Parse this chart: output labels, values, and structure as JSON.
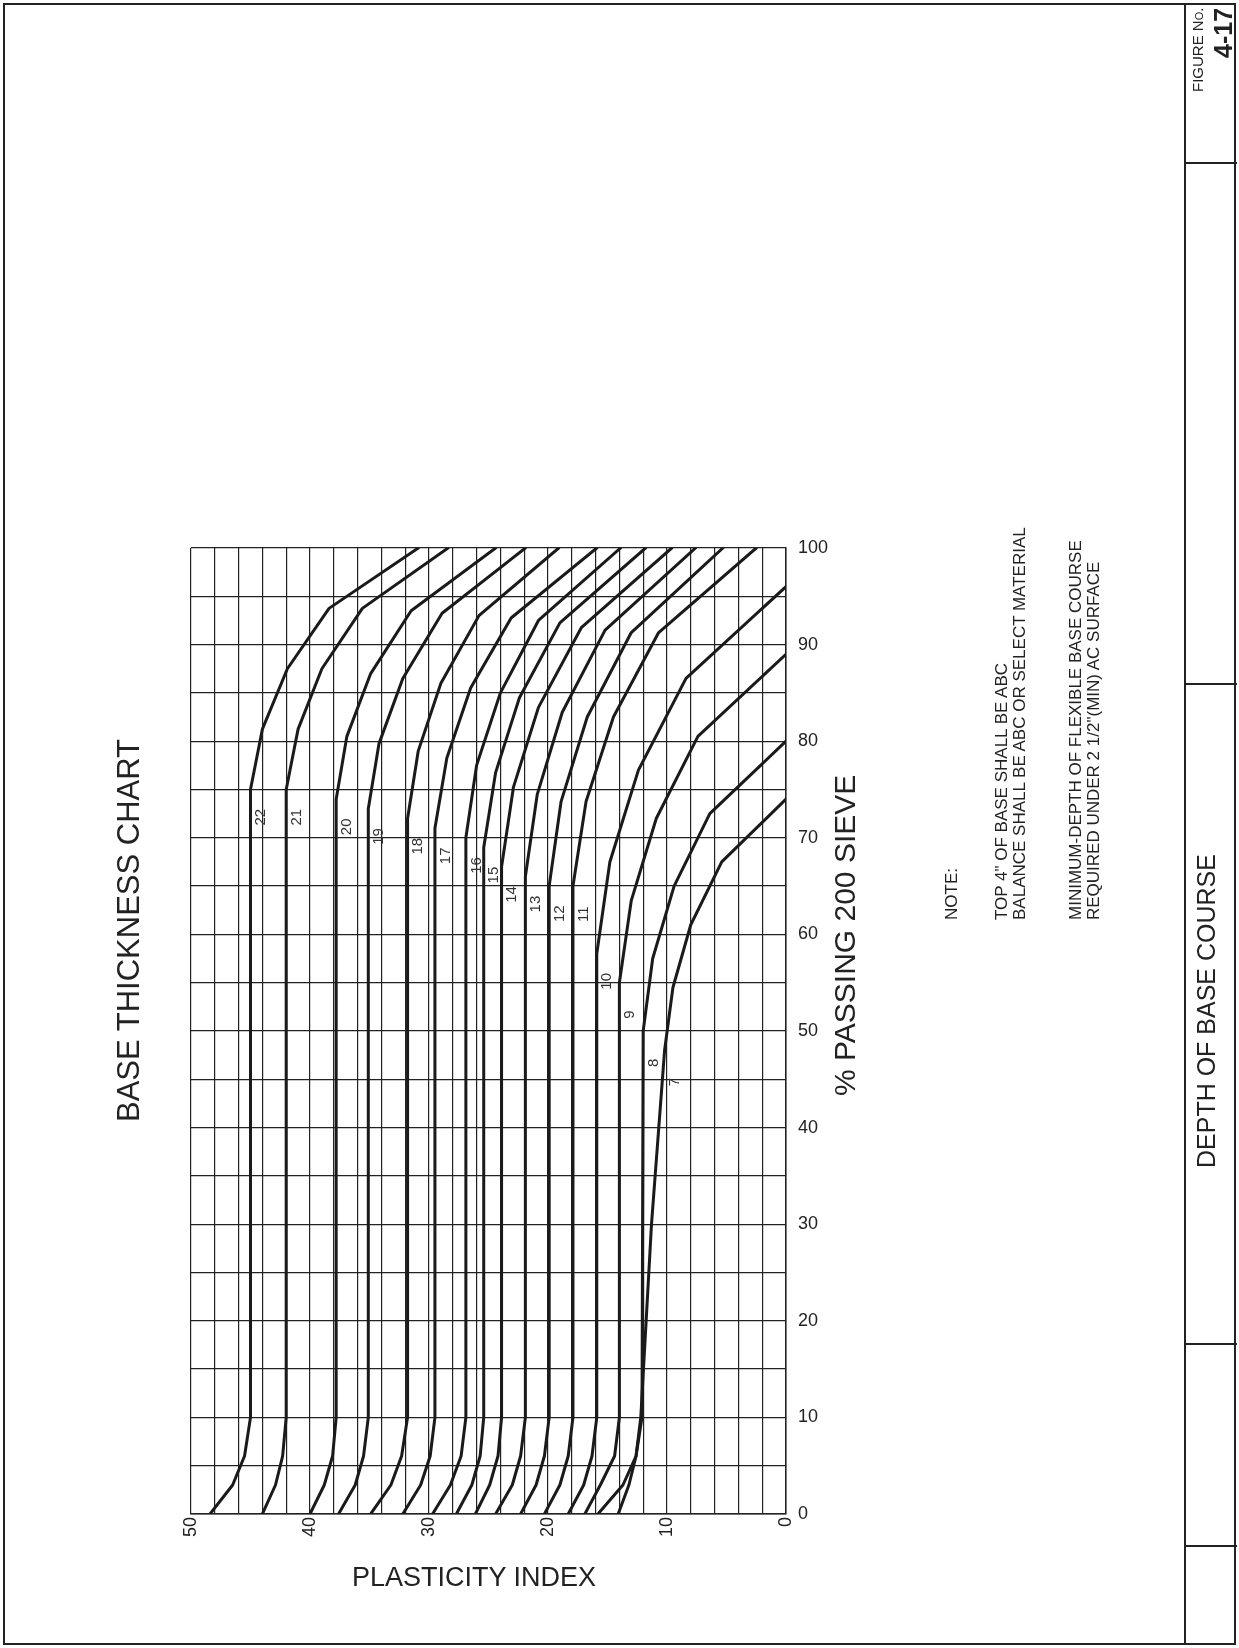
{
  "chart_data": {
    "type": "line",
    "title": "BASE THICKNESS CHART",
    "xlabel": "PLASTICITY INDEX",
    "ylabel": "% PASSING 200 SIEVE",
    "xlim": [
      50,
      0
    ],
    "ylim": [
      0,
      100
    ],
    "xticks": [
      50,
      {
        "value": 48,
        "label": null
      },
      {
        "value": 46,
        "label": null
      },
      {
        "value": 44,
        "label": null
      },
      {
        "value": 42,
        "label": null
      },
      40,
      {
        "value": 38,
        "label": null
      },
      {
        "value": 36,
        "label": null
      },
      {
        "value": 34,
        "label": null
      },
      {
        "value": 32,
        "label": null
      },
      30,
      {
        "value": 28,
        "label": null
      },
      {
        "value": 26,
        "label": null
      },
      {
        "value": 24,
        "label": null
      },
      {
        "value": 22,
        "label": null
      },
      20,
      {
        "value": 18,
        "label": null
      },
      {
        "value": 16,
        "label": null
      },
      {
        "value": 14,
        "label": null
      },
      {
        "value": 12,
        "label": null
      },
      10,
      {
        "value": 8,
        "label": null
      },
      {
        "value": 6,
        "label": null
      },
      {
        "value": 4,
        "label": null
      },
      {
        "value": 2,
        "label": null
      },
      0
    ],
    "yticks": [
      0,
      {
        "value": 5,
        "label": null
      },
      10,
      {
        "value": 15,
        "label": null
      },
      20,
      {
        "value": 25,
        "label": null
      },
      30,
      {
        "value": 35,
        "label": null
      },
      40,
      {
        "value": 45,
        "label": null
      },
      50,
      {
        "value": 55,
        "label": null
      },
      60,
      {
        "value": 65,
        "label": null
      },
      70,
      {
        "value": 75,
        "label": null
      },
      80,
      {
        "value": 85,
        "label": null
      },
      90,
      {
        "value": 95,
        "label": null
      },
      100
    ],
    "grid": true,
    "legend": false,
    "series": [
      {
        "name": "22",
        "color": "#1a1a1a",
        "x": [
          48.4,
          46.5,
          45.5,
          45,
          45,
          44,
          41.9,
          38.4,
          30.9
        ],
        "values": [
          0,
          3,
          6,
          10,
          75,
          81.25,
          87.5,
          93.75,
          100
        ]
      },
      {
        "name": "21",
        "color": "#1a1a1a",
        "x": [
          44,
          42.9,
          42.3,
          42,
          42,
          41,
          39,
          35.6,
          28.4
        ],
        "values": [
          0,
          3,
          6,
          10,
          75,
          81.25,
          87.5,
          93.75,
          100
        ]
      },
      {
        "name": "20",
        "color": "#1a1a1a",
        "x": [
          40,
          38.8,
          38.1,
          37.8,
          37.8,
          36.9,
          34.9,
          31.5,
          24.4
        ],
        "values": [
          0,
          3,
          6,
          10,
          74,
          80.5,
          87,
          93.5,
          100
        ]
      },
      {
        "name": "19",
        "color": "#1a1a1a",
        "x": [
          37.6,
          36.2,
          35.5,
          35.1,
          35.1,
          34.2,
          32.2,
          28.9,
          21.9
        ],
        "values": [
          0,
          3,
          6,
          10,
          73,
          79.75,
          86.5,
          93.25,
          100
        ]
      },
      {
        "name": "18",
        "color": "#1a1a1a",
        "x": [
          34.9,
          33.2,
          32.3,
          31.8,
          31.8,
          30.9,
          29,
          25.8,
          19.1
        ],
        "values": [
          0,
          3,
          6,
          10,
          72,
          79,
          86,
          93,
          100
        ]
      },
      {
        "name": "17",
        "color": "#1a1a1a",
        "x": [
          32.2,
          30.7,
          29.9,
          29.5,
          29.5,
          28.5,
          26.5,
          23.1,
          15.9
        ],
        "values": [
          0,
          3,
          6,
          10,
          71,
          78.25,
          85.5,
          92.75,
          100
        ]
      },
      {
        "name": "16",
        "color": "#1a1a1a",
        "x": [
          29.7,
          28.2,
          27.3,
          26.9,
          26.9,
          26,
          24,
          20.8,
          13.9
        ],
        "values": [
          0,
          3,
          6,
          10,
          70,
          77.5,
          85,
          92.5,
          100
        ]
      },
      {
        "name": "15",
        "color": "#1a1a1a",
        "x": [
          27.7,
          26.4,
          25.7,
          25.4,
          25.4,
          24.4,
          22.4,
          19,
          11.8
        ],
        "values": [
          0,
          3,
          6,
          10,
          69,
          76.75,
          84.5,
          92.25,
          100
        ]
      },
      {
        "name": "14",
        "color": "#1a1a1a",
        "x": [
          26.1,
          24.9,
          24.2,
          23.9,
          23.9,
          22.9,
          20.8,
          17.2,
          9.6
        ],
        "values": [
          0,
          3,
          6,
          10,
          67,
          75.25,
          83.5,
          91.75,
          100
        ]
      },
      {
        "name": "13",
        "color": "#1a1a1a",
        "x": [
          24.4,
          23,
          22.3,
          21.9,
          21.9,
          20.9,
          18.8,
          15.2,
          7.6
        ],
        "values": [
          0,
          3,
          6,
          10,
          66,
          74.5,
          83,
          91.5,
          100
        ]
      },
      {
        "name": "12",
        "color": "#1a1a1a",
        "x": [
          22.3,
          21,
          20.3,
          19.9,
          19.9,
          18.9,
          16.7,
          13,
          5.3
        ],
        "values": [
          0,
          3,
          6,
          10,
          65,
          73.75,
          82.5,
          91.25,
          100
        ]
      },
      {
        "name": "11",
        "color": "#1a1a1a",
        "x": [
          20.3,
          19,
          18.3,
          17.9,
          17.9,
          16.8,
          14.5,
          10.7,
          2.5
        ],
        "values": [
          0,
          3,
          6,
          10,
          65,
          73.75,
          82.5,
          91.25,
          100
        ]
      },
      {
        "name": "10",
        "color": "#1a1a1a",
        "x": [
          18.3,
          17,
          16.3,
          15.9,
          15.9,
          14.8,
          12.4,
          8.4,
          0
        ],
        "values": [
          0,
          3,
          6,
          10,
          58,
          67.5,
          77,
          86.5,
          96
        ]
      },
      {
        "name": "9",
        "color": "#1a1a1a",
        "x": [
          16.9,
          15.6,
          14.4,
          14,
          14,
          13,
          10.9,
          7.4,
          0
        ],
        "values": [
          0,
          3,
          6,
          10,
          55,
          63.5,
          72,
          80.5,
          89
        ]
      },
      {
        "name": "8",
        "color": "#1a1a1a",
        "x": [
          15.8,
          13.7,
          12.6,
          12.1,
          12,
          11.2,
          9.4,
          6.4,
          0
        ],
        "values": [
          0,
          3,
          6,
          10,
          50,
          57.5,
          65,
          72.5,
          80
        ]
      },
      {
        "name": "7",
        "color": "#1a1a1a",
        "x": [
          14.1,
          13.2,
          12.6,
          12.2,
          11.3,
          10.2,
          9.5,
          8,
          5.4,
          0
        ],
        "values": [
          0,
          3,
          6,
          10,
          30,
          48,
          54.5,
          61,
          67.5,
          74
        ]
      }
    ],
    "annotations": [
      "NOTE:",
      "TOP 4\" OF BASE SHALL BE ABC",
      "BALANCE SHALL BE ABC OR SELECT MATERIAL",
      "MINIMUM-DEPTH OF FLEXIBLE BASE COURSE",
      "REQUIRED UNDER 2 1/2\"(MIN) AC SURFACE",
      "DEPTH OF BASE COURSE",
      "FIGURE No.",
      "4-17"
    ]
  }
}
